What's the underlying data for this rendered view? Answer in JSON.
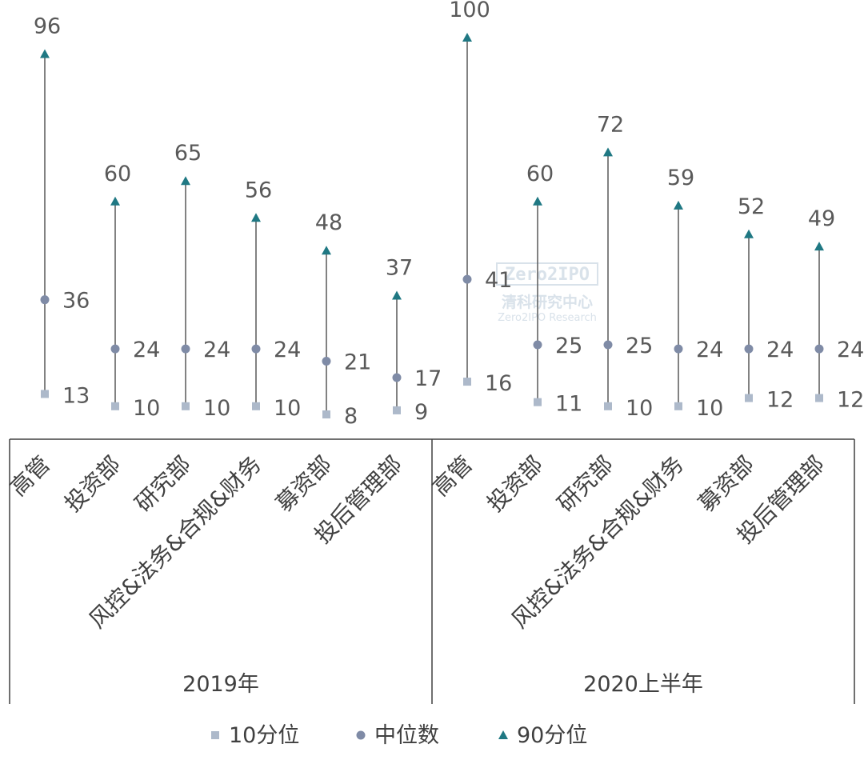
{
  "watermark": {
    "brand": "Zero2IPO",
    "cn": "清科研究中心",
    "en": "Zero2IPO Research"
  },
  "chart_data": {
    "type": "scatter",
    "groups": [
      {
        "name": "2019年",
        "categories": [
          "高管",
          "投资部",
          "研究部",
          "风控&法务&合规&财务",
          "募资部",
          "投后管理部"
        ]
      },
      {
        "name": "2020上半年",
        "categories": [
          "高管",
          "投资部",
          "研究部",
          "风控&法务&合规&财务",
          "募资部",
          "投后管理部"
        ]
      }
    ],
    "series": [
      {
        "name": "10分位",
        "marker": "square",
        "color": "#adb9ca",
        "values": [
          13,
          10,
          10,
          10,
          8,
          9,
          16,
          11,
          10,
          10,
          12,
          12
        ]
      },
      {
        "name": "中位数",
        "marker": "circle",
        "color": "#7f8ba6",
        "values": [
          36,
          24,
          24,
          24,
          21,
          17,
          41,
          25,
          25,
          24,
          24,
          24
        ]
      },
      {
        "name": "90分位",
        "marker": "triangle",
        "color": "#1f7883",
        "values": [
          96,
          60,
          65,
          56,
          48,
          37,
          100,
          60,
          72,
          59,
          52,
          49
        ]
      }
    ],
    "ylim": [
      0,
      100
    ],
    "legend": "bottom",
    "grid": false
  }
}
